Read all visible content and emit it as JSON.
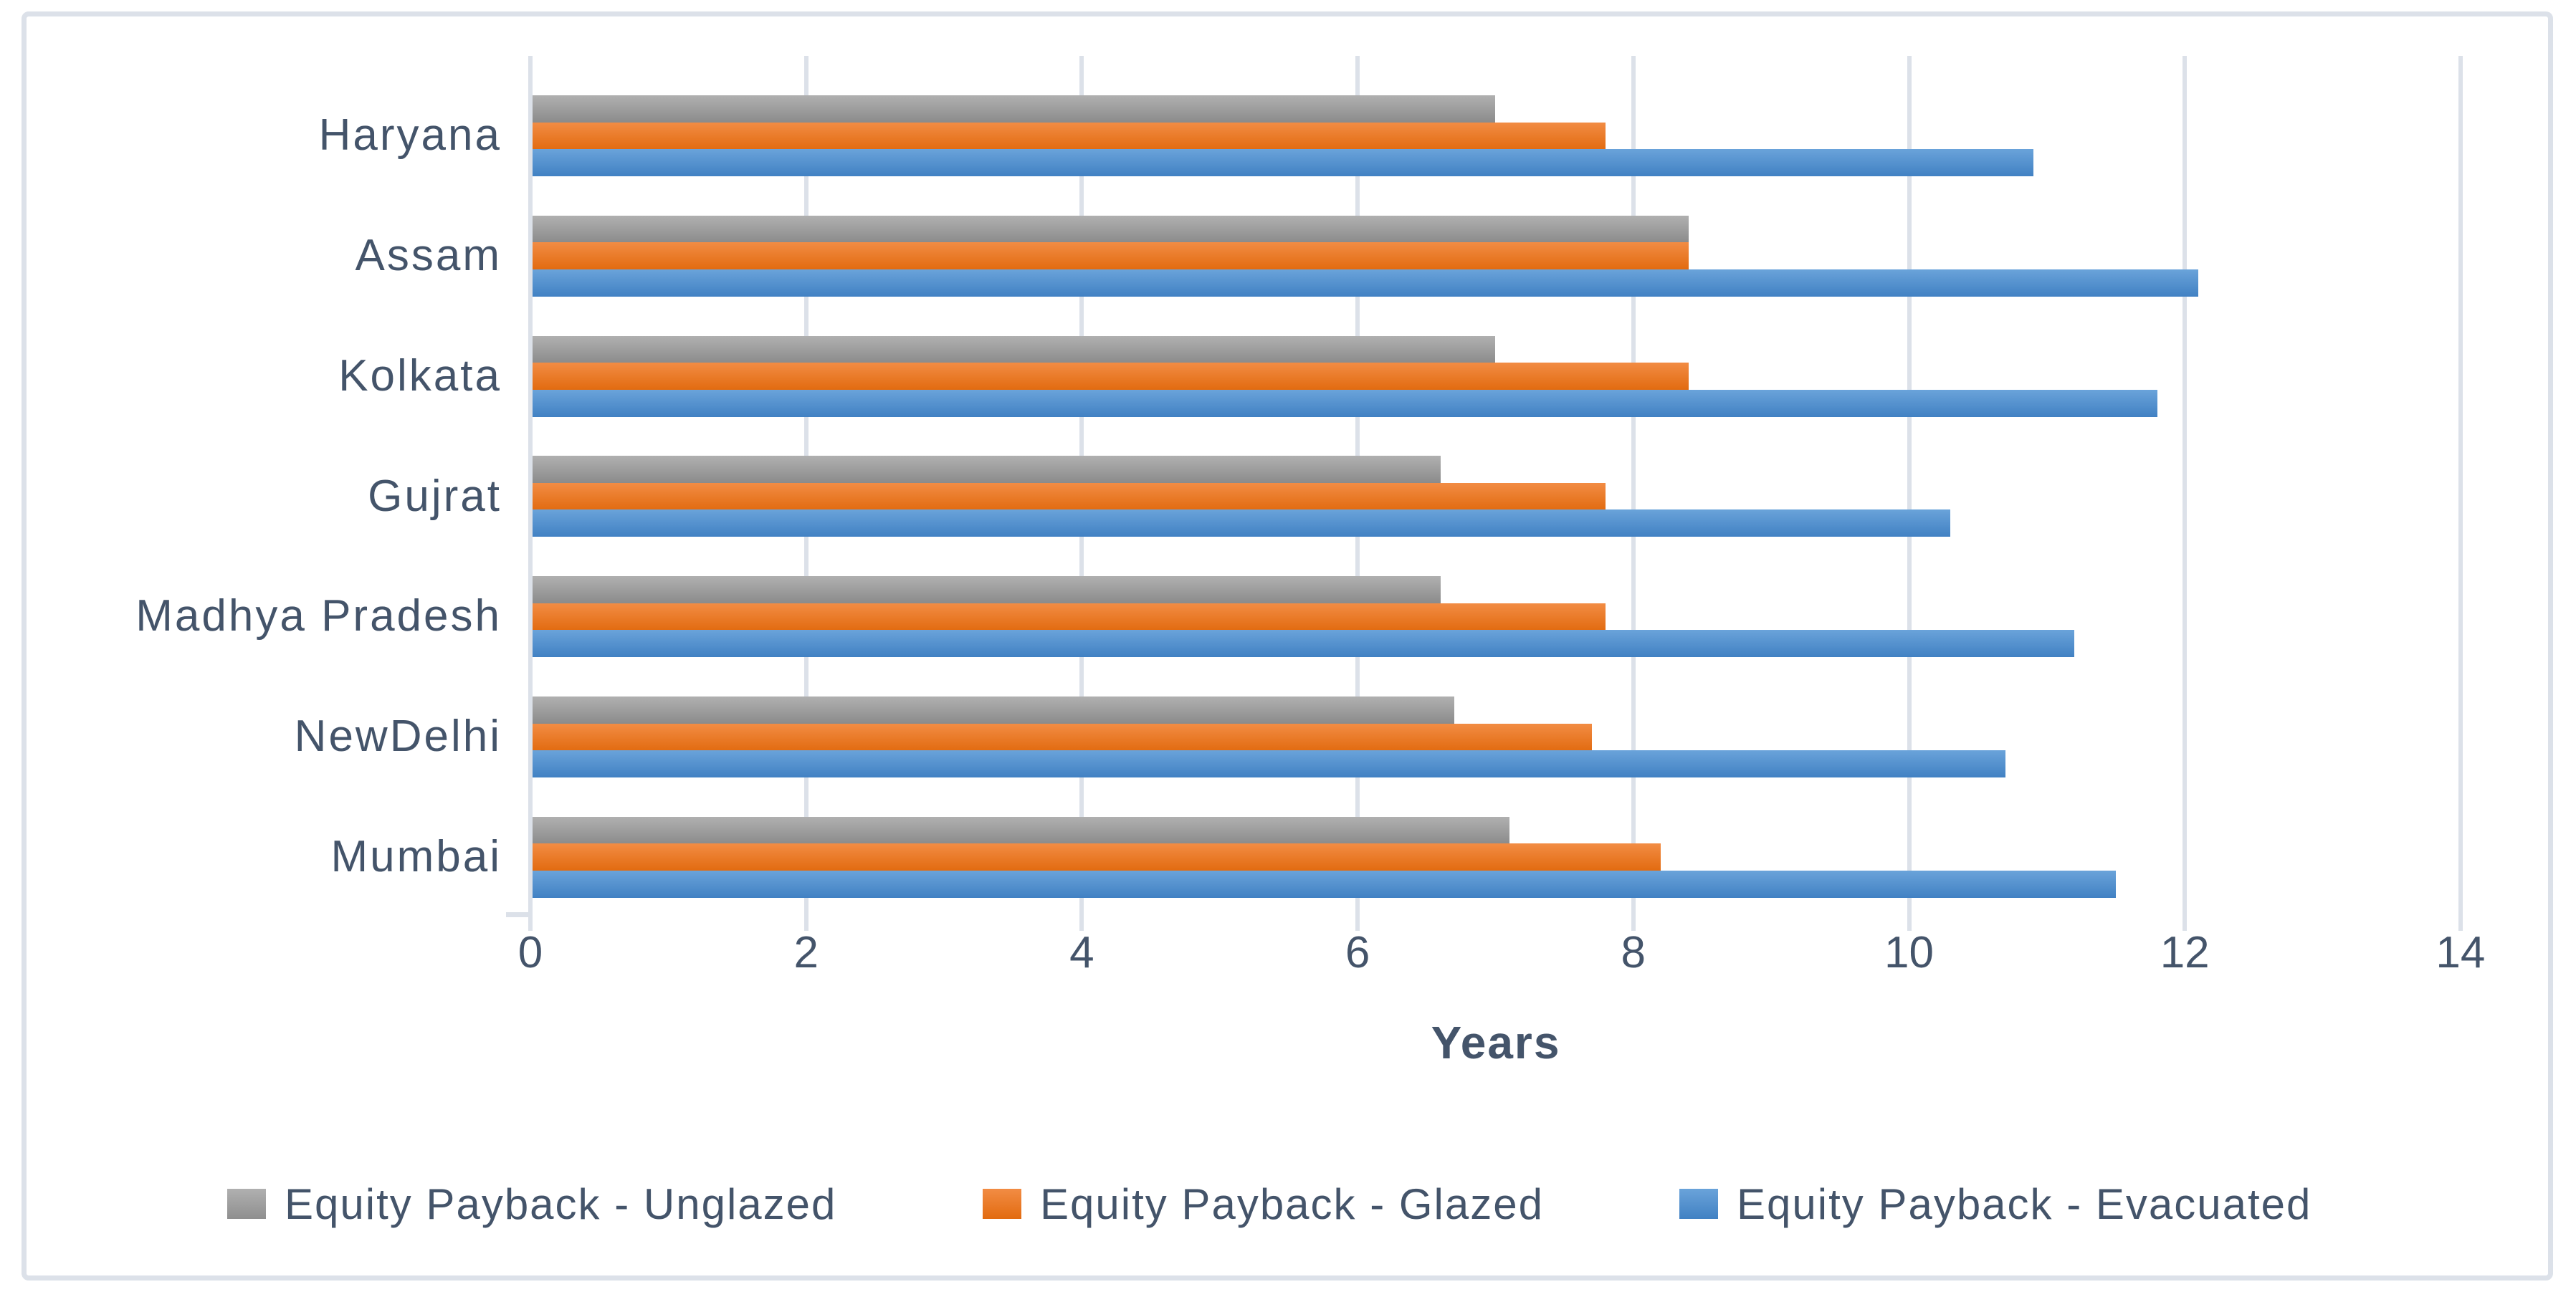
{
  "chart_data": {
    "type": "bar",
    "orientation": "horizontal",
    "title": "",
    "xlabel": "Years",
    "ylabel": "",
    "categories": [
      "Haryana",
      "Assam",
      "Kolkata",
      "Gujrat",
      "Madhya Pradesh",
      "NewDelhi",
      "Mumbai"
    ],
    "series": [
      {
        "name": "Equity Payback - Unglazed",
        "color": "#A5A5A5",
        "values": [
          7.0,
          8.4,
          7.0,
          6.6,
          6.6,
          6.7,
          7.1
        ]
      },
      {
        "name": "Equity Payback - Glazed",
        "color": "#ED7D31",
        "values": [
          7.8,
          8.4,
          8.4,
          7.8,
          7.8,
          7.7,
          8.2
        ]
      },
      {
        "name": "Equity Payback - Evacuated",
        "color": "#5B9BD5",
        "values": [
          10.9,
          12.1,
          11.8,
          10.3,
          11.2,
          10.7,
          11.5
        ]
      }
    ],
    "x_ticks": [
      0,
      2,
      4,
      6,
      8,
      10,
      12,
      14
    ],
    "xlim": [
      0,
      14
    ],
    "grid": true,
    "legend_position": "bottom",
    "colors": {
      "text": "#44546A",
      "grid": "#DCE1E9"
    }
  }
}
